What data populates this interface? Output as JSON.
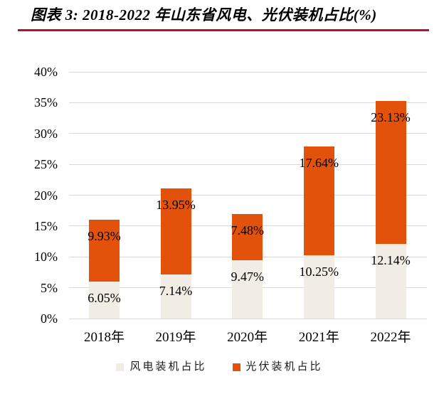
{
  "header": {
    "title": "图表 3: 2018-2022 年山东省风电、光伏装机占比(%)"
  },
  "chart_data": {
    "type": "bar",
    "stacked": true,
    "title": "图表 3: 2018-2022 年山东省风电、光伏装机占比(%)",
    "categories": [
      "2018年",
      "2019年",
      "2020年",
      "2021年",
      "2022年"
    ],
    "series": [
      {
        "key": "wind",
        "name": "风电装机占比",
        "color": "#F2EDE4",
        "values": [
          6.05,
          7.14,
          9.47,
          10.25,
          12.14
        ],
        "labels": [
          "6.05%",
          "7.14%",
          "9.47%",
          "10.25%",
          "12.14%"
        ]
      },
      {
        "key": "solar",
        "name": "光伏装机占比",
        "color": "#E2520A",
        "values": [
          9.93,
          13.95,
          7.48,
          17.64,
          23.13
        ],
        "labels": [
          "9.93%",
          "13.95%",
          "7.48%",
          "17.64%",
          "23.13%"
        ]
      }
    ],
    "ylim": [
      0,
      40
    ],
    "ytick_step": 5,
    "ytick_labels": [
      "0%",
      "5%",
      "10%",
      "15%",
      "20%",
      "25%",
      "30%",
      "35%",
      "40%"
    ],
    "grid": true,
    "legend_position": "bottom"
  },
  "colors": {
    "accent_rule": "#B81233",
    "gridline": "#D9D9D9",
    "wind_series": "#F2EDE4",
    "solar_series": "#E2520A",
    "text": "#000000"
  }
}
